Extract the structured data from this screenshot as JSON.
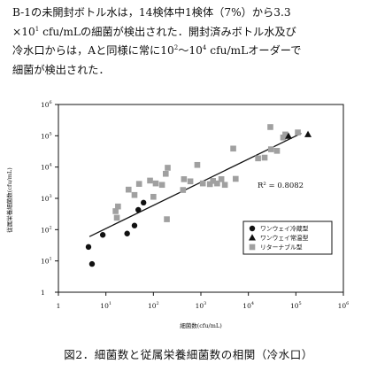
{
  "paragraph": {
    "line1": "B-1の未開封ボトル水は，14検体中1検体（7%）から3.3",
    "line2_pre": "×10",
    "line2_sup": "1",
    "line2_post": " cfu/mLの細菌が検出された．開封済みボトル水及び",
    "line3_pre": "冷水口からは，Aと同様に常に10",
    "line3_sup1": "2",
    "line3_mid": "～10",
    "line3_sup2": "4",
    "line3_post": " cfu/mLオーダーで",
    "line4": "細菌が検出された．"
  },
  "caption": "図2．細菌数と従属栄養細菌数の相関（冷水口）",
  "chart_data": {
    "type": "scatter",
    "x_scale": "log",
    "y_scale": "log",
    "xlim": [
      1,
      1000000
    ],
    "ylim": [
      1,
      1000000
    ],
    "xlabel": "細菌数(cfu/mL)",
    "ylabel": "従属栄養細菌数(cfu/mL)",
    "x_ticks": [
      {
        "value": 1,
        "base": "1",
        "exp": ""
      },
      {
        "value": 10,
        "base": "10",
        "exp": "1"
      },
      {
        "value": 100,
        "base": "10",
        "exp": "2"
      },
      {
        "value": 1000,
        "base": "10",
        "exp": "3"
      },
      {
        "value": 10000,
        "base": "10",
        "exp": "4"
      },
      {
        "value": 100000,
        "base": "10",
        "exp": "5"
      },
      {
        "value": 1000000,
        "base": "10",
        "exp": "6"
      }
    ],
    "y_ticks": [
      {
        "value": 1,
        "base": "1",
        "exp": ""
      },
      {
        "value": 10,
        "base": "10",
        "exp": "1"
      },
      {
        "value": 100,
        "base": "10",
        "exp": "2"
      },
      {
        "value": 1000,
        "base": "10",
        "exp": "3"
      },
      {
        "value": 10000,
        "base": "10",
        "exp": "4"
      },
      {
        "value": 100000,
        "base": "10",
        "exp": "5"
      },
      {
        "value": 1000000,
        "base": "10",
        "exp": "6"
      }
    ],
    "r2_label": "R² = 0.8082",
    "trendline": {
      "x": [
        4.5,
        130000
      ],
      "y": [
        60,
        120000
      ]
    },
    "legend_position": "lower-right",
    "series": [
      {
        "name": "ワンウェイ冷蔵型",
        "marker": "circle",
        "color": "#111111",
        "points": [
          [
            4.3,
            28
          ],
          [
            5.1,
            8
          ],
          [
            8.6,
            68
          ],
          [
            28,
            75
          ],
          [
            40,
            135
          ],
          [
            48,
            430
          ],
          [
            62,
            730
          ]
        ]
      },
      {
        "name": "ワンウェイ常温型",
        "marker": "triangle",
        "color": "#111111",
        "points": [
          [
            70000,
            97000
          ],
          [
            180000,
            110000
          ]
        ]
      },
      {
        "name": "リターナブル型",
        "marker": "square",
        "color": "#a0a0a0",
        "points": [
          [
            16,
            390
          ],
          [
            18,
            550
          ],
          [
            17,
            240
          ],
          [
            30,
            1900
          ],
          [
            40,
            1280
          ],
          [
            50,
            2900
          ],
          [
            85,
            3700
          ],
          [
            100,
            1120
          ],
          [
            112,
            3000
          ],
          [
            152,
            2700
          ],
          [
            182,
            6100
          ],
          [
            192,
            215
          ],
          [
            200,
            9500
          ],
          [
            420,
            1850
          ],
          [
            440,
            4100
          ],
          [
            600,
            3500
          ],
          [
            840,
            11700
          ],
          [
            1100,
            3000
          ],
          [
            1550,
            2850
          ],
          [
            1800,
            3600
          ],
          [
            2200,
            3000
          ],
          [
            2700,
            4100
          ],
          [
            3200,
            2700
          ],
          [
            4800,
            39000
          ],
          [
            5400,
            4200
          ],
          [
            16000,
            19000
          ],
          [
            22000,
            20000
          ],
          [
            29000,
            190000
          ],
          [
            30000,
            37000
          ],
          [
            40000,
            33000
          ],
          [
            54000,
            88000
          ],
          [
            60000,
            110000
          ],
          [
            110000,
            128000
          ]
        ]
      }
    ]
  }
}
